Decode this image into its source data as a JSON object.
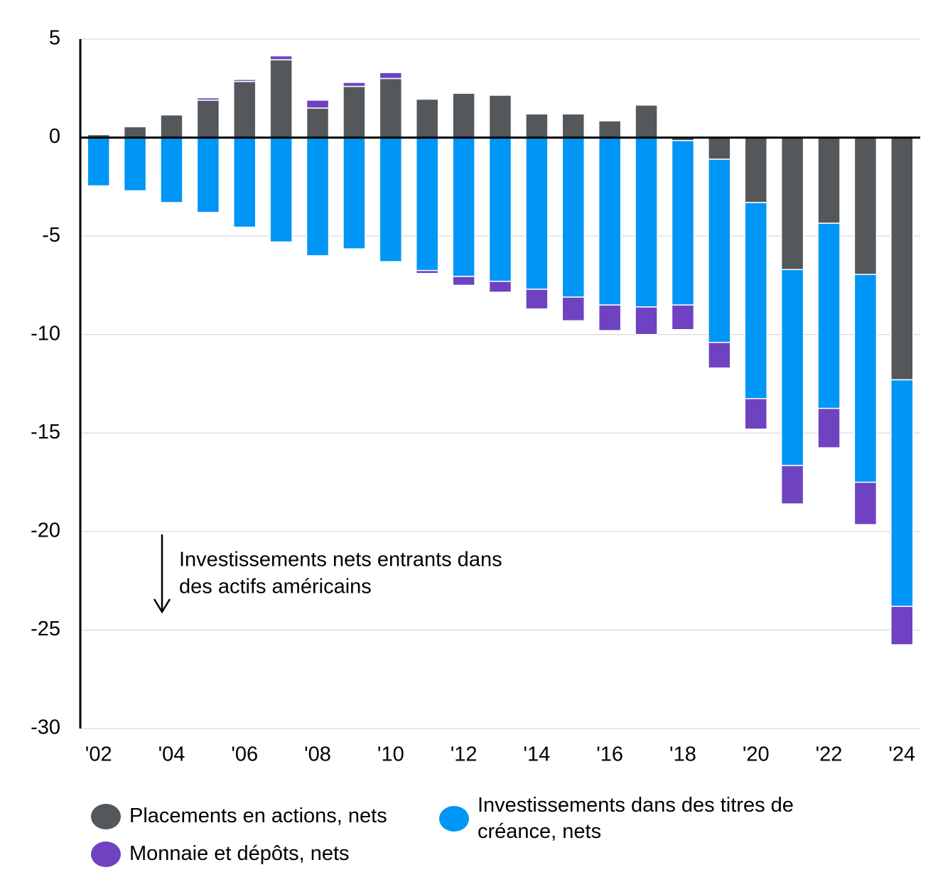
{
  "chart_data": {
    "type": "stacked-bar",
    "categories": [
      "'02",
      null,
      "'04",
      null,
      "'06",
      null,
      "'08",
      null,
      "'10",
      null,
      "'12",
      null,
      "'14",
      null,
      "'16",
      null,
      "'18",
      null,
      "'20",
      null,
      "'22",
      null,
      "'24"
    ],
    "series": [
      {
        "name": "Placements en actions, nets",
        "color": "#54585a",
        "values": [
          0.15,
          0.55,
          1.15,
          1.9,
          2.85,
          3.95,
          1.5,
          2.6,
          3.0,
          1.95,
          2.25,
          2.15,
          1.2,
          1.2,
          0.85,
          1.65,
          -0.15,
          -1.1,
          -3.3,
          -6.7,
          -4.35,
          -6.95,
          -12.3
        ]
      },
      {
        "name": "Investissements dans des titres de créance, nets",
        "color": "#0096f5",
        "values": [
          -2.45,
          -2.7,
          -3.3,
          -3.8,
          -4.55,
          -5.3,
          -6.0,
          -5.65,
          -6.3,
          -6.75,
          -7.05,
          -7.3,
          -7.7,
          -8.1,
          -8.5,
          -8.6,
          -8.35,
          -9.3,
          -9.95,
          -9.95,
          -9.4,
          -10.55,
          -11.5
        ]
      },
      {
        "name": "Monnaie et dépôts, nets",
        "color": "#6f42c1",
        "values": [
          0,
          0,
          0,
          0.12,
          0.1,
          0.2,
          0.4,
          0.2,
          0.3,
          -0.15,
          -0.45,
          -0.55,
          -1.0,
          -1.2,
          -1.3,
          -1.4,
          -1.25,
          -1.3,
          -1.55,
          -1.95,
          -2.0,
          -2.15,
          -1.95
        ]
      }
    ],
    "annotation": [
      "Investissements nets entrants dans",
      "des actifs américains"
    ],
    "ylim": [
      -30,
      5
    ],
    "yticks": [
      5,
      0,
      -5,
      -10,
      -15,
      -20,
      -25,
      -30
    ],
    "grid": true
  }
}
